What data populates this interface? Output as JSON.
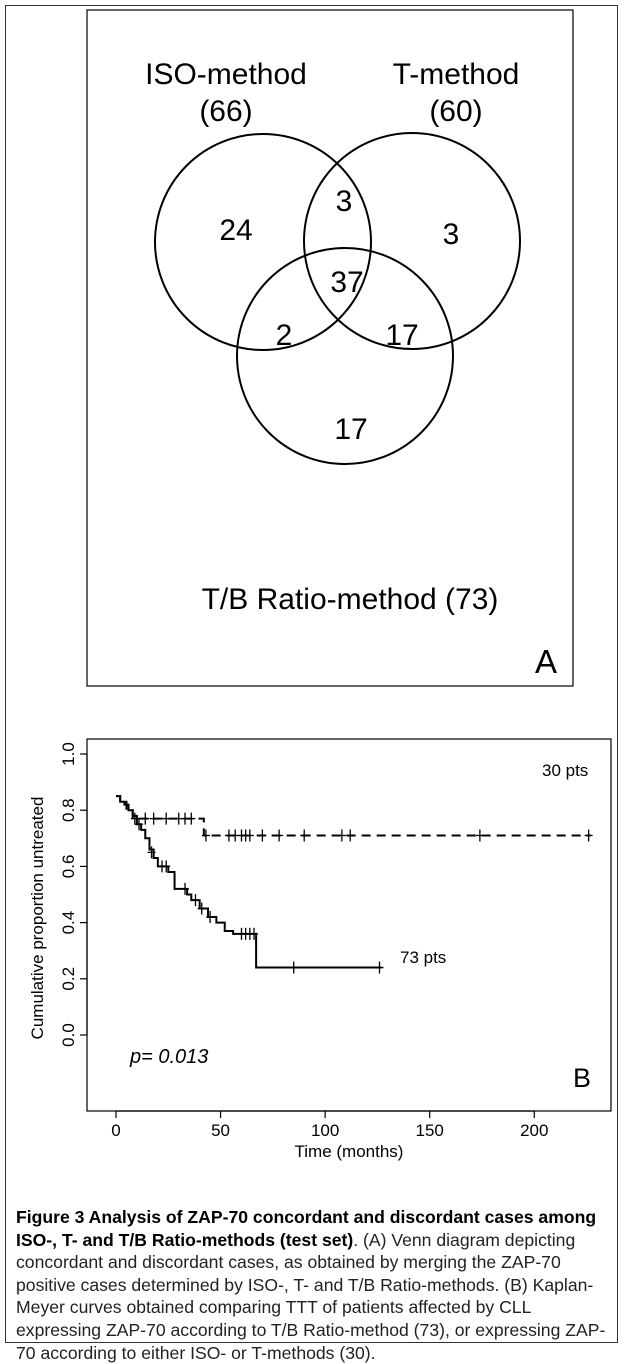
{
  "figure": {
    "caption": {
      "bold": "Figure 3 Analysis of ZAP-70 concordant and discordant cases among ISO-, T- and T/B Ratio-methods (test set)",
      "rest": ". (A) Venn diagram depicting concordant and discordant cases, as obtained by merging the ZAP-70 positive cases determined by ISO-, T- and T/B Ratio-methods. (B) Kaplan-Meyer curves obtained comparing TTT of patients affected by CLL expressing ZAP-70 according to T/B Ratio-method (73), or expressing ZAP-70 according to either ISO- or T-methods (30)."
    }
  },
  "chart_data": [
    {
      "type": "venn",
      "panel_label": "A",
      "sets": [
        {
          "name": "ISO-method",
          "count": "(66)"
        },
        {
          "name": "T-method",
          "count": "(60)"
        },
        {
          "name": "T/B Ratio-method (73)"
        }
      ],
      "regions": {
        "iso_only": 24,
        "t_only": 3,
        "ratio_only": 17,
        "iso_t": 3,
        "iso_ratio": 2,
        "t_ratio": 17,
        "all_three": 37
      }
    },
    {
      "type": "line",
      "subtype": "kaplan-meier step",
      "panel_label": "B",
      "xlabel": "Time (months)",
      "ylabel": "Cumulative proportion untreated",
      "xlim": [
        0,
        230
      ],
      "ylim": [
        0,
        1.0
      ],
      "xticks": [
        0,
        50,
        100,
        150,
        200
      ],
      "yticks": [
        "0.0",
        "0.2",
        "0.4",
        "0.6",
        "0.8",
        "1.0"
      ],
      "annotation": "p= 0.013",
      "series": [
        {
          "name": "30 pts",
          "style": "dashed",
          "steps": [
            [
              0,
              0.85
            ],
            [
              2,
              0.83
            ],
            [
              5,
              0.8
            ],
            [
              8,
              0.77
            ],
            [
              42,
              0.71
            ],
            [
              227,
              0.71
            ]
          ],
          "censored": [
            [
              9,
              0.77
            ],
            [
              14,
              0.77
            ],
            [
              18,
              0.77
            ],
            [
              24,
              0.77
            ],
            [
              30,
              0.77
            ],
            [
              33,
              0.77
            ],
            [
              36,
              0.77
            ],
            [
              43,
              0.71
            ],
            [
              54,
              0.71
            ],
            [
              57,
              0.71
            ],
            [
              60,
              0.71
            ],
            [
              62,
              0.71
            ],
            [
              64,
              0.71
            ],
            [
              70,
              0.71
            ],
            [
              78,
              0.71
            ],
            [
              90,
              0.71
            ],
            [
              108,
              0.71
            ],
            [
              112,
              0.71
            ],
            [
              174,
              0.71
            ],
            [
              226,
              0.71
            ]
          ]
        },
        {
          "name": "73 pts",
          "style": "solid",
          "steps": [
            [
              0,
              0.85
            ],
            [
              2,
              0.83
            ],
            [
              4,
              0.82
            ],
            [
              6,
              0.8
            ],
            [
              8,
              0.78
            ],
            [
              10,
              0.75
            ],
            [
              12,
              0.73
            ],
            [
              14,
              0.7
            ],
            [
              16,
              0.66
            ],
            [
              18,
              0.63
            ],
            [
              20,
              0.6
            ],
            [
              25,
              0.58
            ],
            [
              28,
              0.52
            ],
            [
              34,
              0.5
            ],
            [
              36,
              0.48
            ],
            [
              40,
              0.45
            ],
            [
              44,
              0.42
            ],
            [
              48,
              0.4
            ],
            [
              52,
              0.37
            ],
            [
              56,
              0.36
            ],
            [
              67,
              0.24
            ],
            [
              127,
              0.24
            ]
          ],
          "censored": [
            [
              11,
              0.75
            ],
            [
              17,
              0.65
            ],
            [
              22,
              0.6
            ],
            [
              24,
              0.6
            ],
            [
              33,
              0.52
            ],
            [
              38,
              0.48
            ],
            [
              41,
              0.45
            ],
            [
              45,
              0.42
            ],
            [
              60,
              0.36
            ],
            [
              62,
              0.36
            ],
            [
              64,
              0.36
            ],
            [
              66,
              0.36
            ],
            [
              85,
              0.24
            ],
            [
              126,
              0.24
            ]
          ]
        }
      ]
    }
  ]
}
